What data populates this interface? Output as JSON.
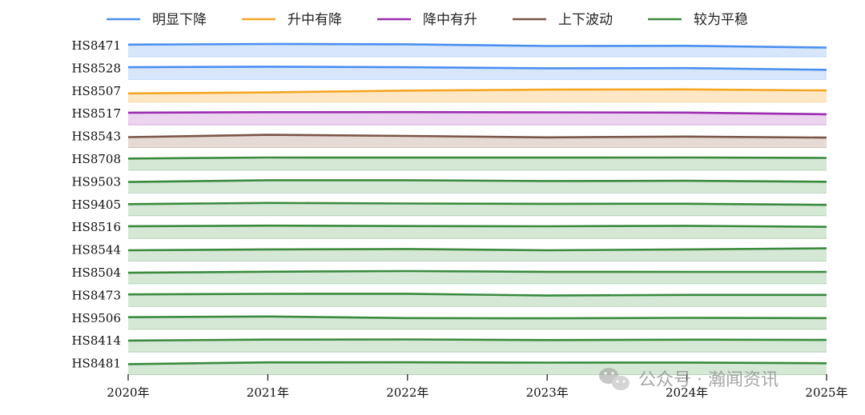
{
  "chart_data": {
    "type": "area",
    "x": [
      "2020年",
      "2021年",
      "2022年",
      "2023年",
      "2024年",
      "2025年"
    ],
    "legend": [
      {
        "key": "down",
        "label": "明显下降",
        "color": "#4a8ff0",
        "fill": "#d7e6fb"
      },
      {
        "key": "up_down",
        "label": "升中有降",
        "color": "#f5a623",
        "fill": "#fde7c5"
      },
      {
        "key": "down_up",
        "label": "降中有升",
        "color": "#9b2bb0",
        "fill": "#ecd3ef"
      },
      {
        "key": "fluct",
        "label": "上下波动",
        "color": "#7a5548",
        "fill": "#e6dad5"
      },
      {
        "key": "flat",
        "label": "较为平稳",
        "color": "#3a8a3e",
        "fill": "#d5e8d6"
      }
    ],
    "legend_position": "top",
    "series": [
      {
        "name": "HS8471",
        "category": "down",
        "values": [
          0.88,
          1.0,
          0.94,
          0.64,
          0.67,
          0.35
        ]
      },
      {
        "name": "HS8528",
        "category": "down",
        "values": [
          0.9,
          1.0,
          0.9,
          0.72,
          0.75,
          0.45
        ]
      },
      {
        "name": "HS8507",
        "category": "up_down",
        "values": [
          0.28,
          0.45,
          0.78,
          0.95,
          1.0,
          0.82
        ]
      },
      {
        "name": "HS8517",
        "category": "down_up",
        "values": [
          0.9,
          0.98,
          1.0,
          0.96,
          0.92,
          0.62
        ]
      },
      {
        "name": "HS8543",
        "category": "fluct",
        "values": [
          0.58,
          1.0,
          0.8,
          0.55,
          0.68,
          0.5
        ]
      },
      {
        "name": "HS8708",
        "category": "flat",
        "values": [
          0.82,
          1.0,
          0.98,
          0.98,
          1.0,
          0.93
        ]
      },
      {
        "name": "HS9503",
        "category": "flat",
        "values": [
          0.68,
          1.0,
          1.0,
          0.85,
          0.9,
          0.73
        ]
      },
      {
        "name": "HS9405",
        "category": "flat",
        "values": [
          0.78,
          1.0,
          0.9,
          0.84,
          0.85,
          0.65
        ]
      },
      {
        "name": "HS8516",
        "category": "flat",
        "values": [
          0.9,
          1.0,
          0.93,
          0.88,
          0.97,
          0.78
        ]
      },
      {
        "name": "HS8544",
        "category": "flat",
        "values": [
          0.66,
          0.82,
          0.88,
          0.66,
          0.82,
          1.0
        ]
      },
      {
        "name": "HS8504",
        "category": "flat",
        "values": [
          0.7,
          0.88,
          1.0,
          0.87,
          0.86,
          0.86
        ]
      },
      {
        "name": "HS8473",
        "category": "flat",
        "values": [
          0.88,
          0.98,
          1.0,
          0.68,
          0.8,
          0.8
        ]
      },
      {
        "name": "HS9506",
        "category": "flat",
        "values": [
          0.87,
          1.0,
          0.72,
          0.67,
          0.76,
          0.71
        ]
      },
      {
        "name": "HS8414",
        "category": "flat",
        "values": [
          0.76,
          0.93,
          0.96,
          0.84,
          0.92,
          0.87
        ]
      },
      {
        "name": "HS8481",
        "category": "flat",
        "values": [
          0.6,
          0.91,
          0.93,
          0.87,
          0.89,
          0.76
        ]
      }
    ],
    "grid": false
  },
  "watermark": {
    "text": "公众号 · 瀚闻资讯",
    "icon": "wechat-icon"
  }
}
